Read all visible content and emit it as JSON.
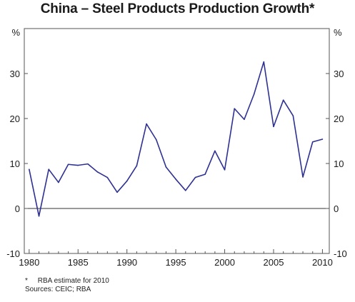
{
  "chart_data": {
    "type": "line",
    "title": "China – Steel Products Production Growth*",
    "ylabel_left": "%",
    "ylabel_right": "%",
    "ylim": [
      -10,
      40
    ],
    "yticks": [
      -10,
      0,
      10,
      20,
      30
    ],
    "xlim": [
      1979.5,
      2010.7
    ],
    "xticks": [
      1980,
      1985,
      1990,
      1995,
      2000,
      2005,
      2010
    ],
    "grid": false,
    "zero_line": true,
    "line_color": "#2e3192",
    "series": [
      {
        "x": [
          1980,
          1981,
          1982,
          1983,
          1984,
          1985,
          1986,
          1987,
          1988,
          1989,
          1990,
          1991,
          1992,
          1993,
          1994,
          1995,
          1996,
          1997,
          1998,
          1999,
          2000,
          2001,
          2002,
          2003,
          2004,
          2005,
          2006,
          2007,
          2008,
          2009,
          2010
        ],
        "values": [
          8.7,
          -1.7,
          8.7,
          5.8,
          9.8,
          9.6,
          9.9,
          8.1,
          6.9,
          3.6,
          6.1,
          9.5,
          18.8,
          15.3,
          9.2,
          6.5,
          4.0,
          6.9,
          7.6,
          12.8,
          8.6,
          22.2,
          19.8,
          25.4,
          32.6,
          18.2,
          24.1,
          20.6,
          7.0,
          14.8,
          15.4
        ]
      }
    ],
    "notes": [
      "*     RBA estimate for 2010",
      "Sources: CEIC; RBA"
    ]
  }
}
